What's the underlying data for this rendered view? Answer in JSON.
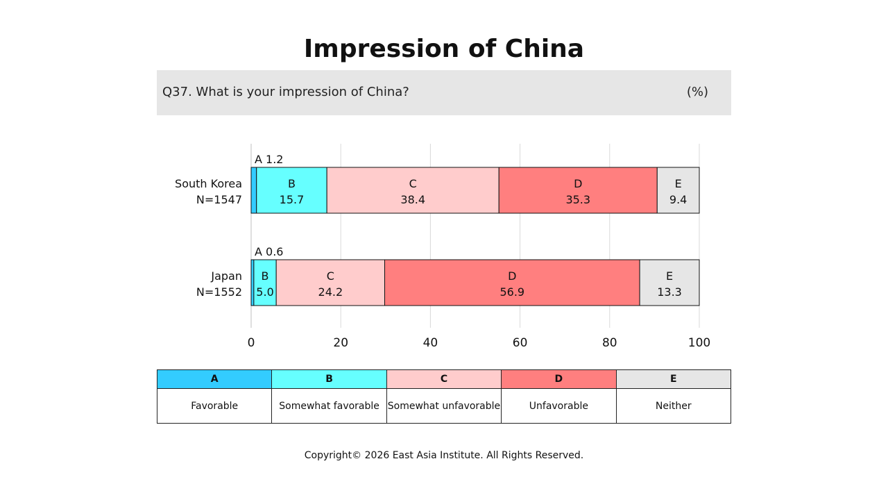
{
  "header": {
    "title": "Impression of China",
    "question": "Q37. What is your impression of China?",
    "unit": "(%)"
  },
  "chart_data": {
    "type": "bar",
    "orientation": "horizontal",
    "stacked": true,
    "categories": [
      {
        "name": "South Korea",
        "n": "N=1547"
      },
      {
        "name": "Japan",
        "n": "N=1552"
      }
    ],
    "series": [
      {
        "code": "A",
        "name": "Favorable",
        "color": "#33ccff",
        "values": [
          1.2,
          0.6
        ],
        "labels": [
          "A 1.2",
          "A 0.6"
        ]
      },
      {
        "code": "B",
        "name": "Somewhat favorable",
        "color": "#66ffff",
        "values": [
          15.7,
          5.0
        ],
        "labels": [
          "15.7",
          "5.0"
        ]
      },
      {
        "code": "C",
        "name": "Somewhat unfavorable",
        "color": "#ffcccc",
        "values": [
          38.4,
          24.2
        ],
        "labels": [
          "38.4",
          "24.2"
        ]
      },
      {
        "code": "D",
        "name": "Unfavorable",
        "color": "#ff7f7f",
        "values": [
          35.3,
          56.9
        ],
        "labels": [
          "35.3",
          "56.9"
        ]
      },
      {
        "code": "E",
        "name": "Neither",
        "color": "#e6e6e6",
        "values": [
          9.4,
          13.3
        ],
        "labels": [
          "9.4",
          "13.3"
        ]
      }
    ],
    "xlim": [
      0,
      100
    ],
    "xticks": [
      0,
      20,
      40,
      60,
      80,
      100
    ],
    "grid": true
  },
  "footer": {
    "copyright": "Copyright© 2026 East Asia Institute. All Rights Reserved."
  }
}
